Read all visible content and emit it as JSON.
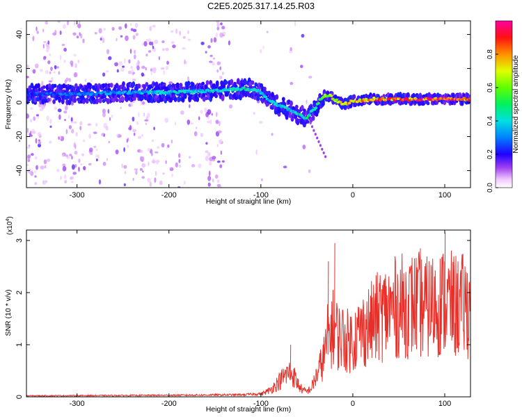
{
  "title": "C2E5.2025.317.14.25.R03",
  "chart_data": [
    {
      "type": "heatmap",
      "name": "spectrogram",
      "xlabel": "Height of straight line (km)",
      "ylabel": "Frequency (Hz)",
      "xlim": [
        -355,
        128
      ],
      "ylim": [
        -50,
        48
      ],
      "xticks": [
        -300,
        -200,
        -100,
        0,
        100
      ],
      "yticks": [
        -40,
        -20,
        0,
        20,
        40
      ],
      "xtick_labels": [
        "-300",
        "-200",
        "-100",
        "0",
        "100"
      ],
      "ytick_labels": [
        "-40",
        "-20",
        "0",
        "20",
        "40"
      ],
      "colorbar": {
        "label": "Normalized spectral amplitude",
        "range": [
          0,
          1
        ],
        "ticks": [
          0.0,
          0.2,
          0.4,
          0.6,
          0.8
        ],
        "tick_labels": [
          "0.0",
          "0.2",
          "0.4",
          "0.6",
          "0.8"
        ]
      },
      "ridge": {
        "x": [
          -355,
          -300,
          -250,
          -200,
          -150,
          -130,
          -110,
          -100,
          -90,
          -80,
          -70,
          -60,
          -50,
          -45,
          -40,
          -38,
          -35,
          -30,
          -25,
          -20,
          -15,
          -10,
          -5,
          0,
          10,
          20,
          40,
          60,
          80,
          100,
          128
        ],
        "y": [
          5,
          5,
          6,
          6,
          7,
          8,
          8,
          6,
          1,
          -2,
          -4,
          -7,
          -9,
          -5,
          -3,
          -1,
          2,
          4,
          4,
          2,
          0,
          -1,
          0,
          1,
          1,
          2,
          2,
          2,
          2,
          2,
          2
        ]
      },
      "ridge_amplitude": {
        "x": [
          -355,
          -300,
          -250,
          -200,
          -150,
          -120,
          -100,
          -70,
          -50,
          -40,
          -30,
          -20,
          -10,
          0,
          30,
          60,
          100,
          128
        ],
        "v": [
          0.25,
          0.3,
          0.35,
          0.4,
          0.4,
          0.45,
          0.4,
          0.4,
          0.45,
          0.45,
          0.6,
          0.75,
          0.7,
          0.8,
          0.85,
          0.9,
          0.9,
          0.85
        ]
      }
    },
    {
      "type": "line",
      "name": "snr",
      "xlabel": "Height of straight line (km)",
      "ylabel": "SNR (10 * v/v)",
      "y_multiplier_label": "(x10",
      "y_multiplier_exp": "4",
      "y_multiplier_close": ")",
      "xlim": [
        -355,
        128
      ],
      "ylim": [
        0,
        3.2
      ],
      "xticks": [
        -300,
        -200,
        -100,
        0,
        100
      ],
      "yticks": [
        0,
        1,
        2,
        3
      ],
      "xtick_labels": [
        "-300",
        "-200",
        "-100",
        "0",
        "100"
      ],
      "ytick_labels": [
        "0",
        "1",
        "2",
        "3"
      ],
      "series": [
        {
          "name": "SNR",
          "color": "#e8302a",
          "envelope_x": [
            -355,
            -200,
            -120,
            -100,
            -90,
            -80,
            -75,
            -70,
            -65,
            -60,
            -55,
            -50,
            -45,
            -40,
            -35,
            -30,
            -28,
            -25,
            -22,
            -20,
            -15,
            -10,
            -5,
            0,
            10,
            20,
            30,
            40,
            50,
            60,
            70,
            80,
            90,
            100,
            110,
            128
          ],
          "envelope_y": [
            0.02,
            0.03,
            0.04,
            0.06,
            0.15,
            0.35,
            0.45,
            0.55,
            0.5,
            0.3,
            0.15,
            0.12,
            0.2,
            0.45,
            0.7,
            1.0,
            1.3,
            1.45,
            1.55,
            1.55,
            1.35,
            1.35,
            1.25,
            1.3,
            1.5,
            1.65,
            1.85,
            1.95,
            2.05,
            2.05,
            2.1,
            2.0,
            2.1,
            2.15,
            2.05,
            2.05
          ],
          "spikes_x": [
            -68,
            -20,
            -27,
            73,
            100,
            85,
            40
          ],
          "spikes_y": [
            1.0,
            2.95,
            2.6,
            2.85,
            3.15,
            2.5,
            2.1
          ]
        }
      ]
    }
  ],
  "colors": {
    "snr_line": "#e8302a",
    "axes": "#000000"
  }
}
